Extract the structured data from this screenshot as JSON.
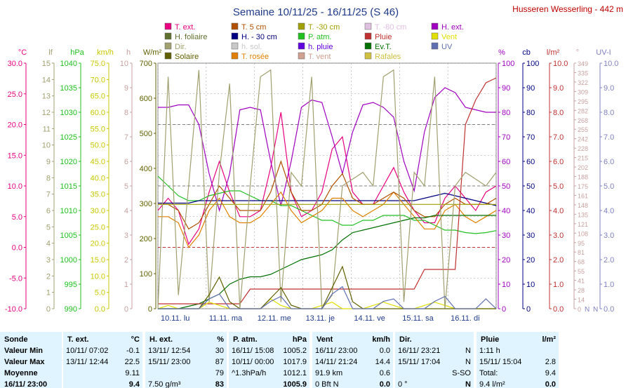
{
  "title": "Semaine 10/11/25 - 16/11/25 (S 46)",
  "station": "Husseren Wesserling - 442 m",
  "legend": [
    {
      "label": "T. ext.",
      "color": "#e8007f"
    },
    {
      "label": "T. 5 cm",
      "color": "#b05000"
    },
    {
      "label": "T. -30 cm",
      "color": "#a0a000"
    },
    {
      "label": "T. -80 cm",
      "color": "#e0c0e0"
    },
    {
      "label": "H. ext.",
      "color": "#a000c0"
    },
    {
      "label": "H. foliaire",
      "color": "#607030"
    },
    {
      "label": "H. - 30 cm",
      "color": "#000080"
    },
    {
      "label": "P. atm.",
      "color": "#20c020"
    },
    {
      "label": "Pluie",
      "color": "#c03030"
    },
    {
      "label": "Vent",
      "color": "#e0e000"
    },
    {
      "label": "Dir.",
      "color": "#a0a070"
    },
    {
      "label": "h. sol.",
      "color": "#c8c8c8"
    },
    {
      "label": "h. pluie",
      "color": "#6000e0"
    },
    {
      "label": "Ev.T.",
      "color": "#007000"
    },
    {
      "label": "UV",
      "color": "#6070b0"
    },
    {
      "label": "Solaire",
      "color": "#606000"
    },
    {
      "label": "T. rosée",
      "color": "#e08000"
    },
    {
      "label": "T. vent",
      "color": "#d0a090"
    },
    {
      "label": "Rafales",
      "color": "#d0c040"
    }
  ],
  "chart_data": {
    "type": "line",
    "title": "Semaine 10/11/25 - 16/11/25 (S 46)",
    "x_labels": [
      "10.11. lu",
      "11.11. ma",
      "12.11. me",
      "13.11. je",
      "14.11. ve",
      "15.11. sa",
      "16.11. di"
    ],
    "axes": {
      "temp": {
        "unit": "°C",
        "color": "#e8007f",
        "ticks": [
          "30.0",
          "25.0",
          "20.0",
          "15.0",
          "10.0",
          "5.0",
          "0.0",
          "-5.0",
          "-10.0"
        ],
        "range": [
          -10,
          30
        ]
      },
      "lf": {
        "unit": "lf",
        "color": "#a0a070",
        "ticks": [
          "15",
          "14",
          "13",
          "12",
          "11",
          "10",
          "9",
          "8",
          "7",
          "6",
          "5",
          "4",
          "3",
          "2",
          "1",
          "0"
        ],
        "range": [
          0,
          15
        ]
      },
      "pressure": {
        "unit": "hPa",
        "color": "#20c020",
        "ticks": [
          "1040",
          "1035",
          "1030",
          "1025",
          "1020",
          "1015",
          "1010",
          "1005",
          "1000",
          "995",
          "990"
        ],
        "range": [
          990,
          1040
        ]
      },
      "wind": {
        "unit": "km/h",
        "color": "#c8c800",
        "ticks": [
          "75.0",
          "70.0",
          "65.0",
          "60.0",
          "55.0",
          "50.0",
          "45.0",
          "40.0",
          "35.0",
          "30.0",
          "25.0",
          "20.0",
          "15.0",
          "10.0",
          "5.0",
          "0.0"
        ],
        "range": [
          0,
          75
        ]
      },
      "hours": {
        "unit": "h",
        "color": "#c8a0a0",
        "ticks": [
          "10",
          "9",
          "8",
          "7",
          "6",
          "5",
          "4",
          "3",
          "2",
          "1",
          "0"
        ],
        "range": [
          0,
          10
        ]
      },
      "solar": {
        "unit": "W/m²",
        "color": "#606000",
        "ticks": [
          "700",
          "600",
          "500",
          "400",
          "300",
          "200",
          "100",
          "0"
        ],
        "range": [
          0,
          700
        ]
      },
      "humidity": {
        "unit": "%",
        "color": "#a000c0",
        "ticks": [
          "100",
          "90",
          "80",
          "70",
          "60",
          "50",
          "40",
          "30",
          "20",
          "10",
          "0"
        ],
        "range": [
          0,
          100
        ]
      },
      "cb": {
        "unit": "cb",
        "color": "#000080",
        "ticks": [
          "100",
          "90",
          "80",
          "70",
          "60",
          "50",
          "40",
          "30",
          "20",
          "10",
          "0"
        ],
        "range": [
          0,
          100
        ]
      },
      "rain": {
        "unit": "l/m²",
        "color": "#c03030",
        "ticks": [
          "10.0",
          "9.0",
          "8.0",
          "7.0",
          "6.0",
          "5.0",
          "4.0",
          "3.0",
          "2.0",
          "1.0",
          "0.0"
        ],
        "range": [
          0,
          10
        ]
      },
      "dir": {
        "unit": "°",
        "color": "#c8a0a0",
        "ticks": [
          "349",
          "335",
          "322",
          "309",
          "295",
          "282",
          "268",
          "255",
          "242",
          "228",
          "215",
          "202",
          "188",
          "175",
          "161",
          "148",
          "135",
          "121",
          "108",
          "95",
          "81",
          "68",
          "55",
          "41",
          "28",
          "14",
          "0"
        ],
        "range": [
          0,
          360
        ]
      },
      "uv": {
        "unit": "UV-I",
        "color": "#8080c0",
        "ticks": [
          "10.0",
          "9.0",
          "8.0",
          "7.0",
          "6.0",
          "5.0",
          "4.0",
          "3.0",
          "2.0",
          "1.0",
          "0.0"
        ],
        "range": [
          0,
          10
        ]
      }
    },
    "dir_labels": [
      "N",
      "N"
    ],
    "series": [
      {
        "name": "T. ext.",
        "color": "#e8007f",
        "axis": "temp",
        "values": [
          6,
          8,
          6,
          0.5,
          3,
          9,
          14,
          9,
          5,
          5,
          6,
          13,
          22,
          9,
          5,
          6,
          9,
          16,
          18,
          9,
          7,
          7,
          10,
          13,
          9,
          6,
          4,
          4,
          8,
          10,
          8,
          6,
          9,
          10
        ]
      },
      {
        "name": "H. ext.",
        "color": "#a000c0",
        "axis": "humidity",
        "values": [
          82,
          82,
          83,
          83,
          75,
          55,
          40,
          55,
          81,
          82,
          81,
          60,
          42,
          60,
          82,
          85,
          84,
          70,
          55,
          72,
          83,
          84,
          82,
          78,
          60,
          48,
          72,
          86,
          90,
          88,
          82,
          81,
          80,
          80
        ]
      },
      {
        "name": "P. atm.",
        "color": "#20c020",
        "axis": "pressure",
        "values": [
          1017,
          1015,
          1013,
          1012,
          1012,
          1013,
          1013.5,
          1014,
          1014,
          1013,
          1012,
          1012,
          1011,
          1011,
          1010,
          1009,
          1008,
          1008,
          1007,
          1007,
          1008,
          1008,
          1009,
          1009,
          1009,
          1008,
          1008,
          1007,
          1006,
          1006,
          1005.5,
          1005.3,
          1005.5,
          1005.9
        ]
      },
      {
        "name": "H. - 30 cm",
        "color": "#000080",
        "axis": "cb",
        "values": [
          43,
          43,
          43,
          43,
          44,
          44,
          44,
          44,
          44,
          44,
          44,
          44,
          44,
          44,
          44,
          44,
          44,
          44,
          44,
          44,
          44,
          44,
          44,
          44,
          44,
          44,
          45,
          46,
          47,
          46,
          45,
          44,
          43,
          42
        ]
      },
      {
        "name": "T. rosée",
        "color": "#e08000",
        "axis": "temp",
        "values": [
          5,
          5,
          4,
          0,
          2,
          6,
          8,
          5,
          4,
          4,
          5,
          7,
          9,
          6,
          4,
          5,
          6,
          8,
          8,
          6,
          5,
          6,
          7,
          9,
          7,
          5,
          3,
          3,
          6,
          7,
          5,
          4,
          5,
          6
        ]
      },
      {
        "name": "T. 5 cm",
        "color": "#b05000",
        "axis": "temp",
        "values": [
          7,
          7,
          6,
          3,
          4,
          7,
          10,
          8,
          6,
          6,
          6,
          9,
          14,
          9,
          6,
          6,
          7,
          10,
          12,
          8,
          7,
          7,
          8,
          9,
          8,
          6,
          5,
          5,
          7,
          8,
          7,
          7,
          7,
          8
        ]
      },
      {
        "name": "T. -30 cm",
        "color": "#a0a000",
        "axis": "temp",
        "values": [
          7,
          7,
          7,
          7,
          7,
          7,
          7,
          7,
          7,
          7,
          7,
          7,
          7,
          7,
          7,
          7,
          7,
          7,
          7,
          7,
          7,
          7,
          7,
          7,
          7,
          7,
          7,
          7,
          7,
          7,
          7,
          7,
          7,
          7
        ]
      },
      {
        "name": "Ev.T.",
        "color": "#007000",
        "axis": "rain",
        "values": [
          0,
          0,
          0,
          0.1,
          0.2,
          0.4,
          0.6,
          1,
          1.2,
          1.3,
          1.3,
          1.4,
          1.6,
          1.8,
          2,
          2.1,
          2.2,
          2.4,
          2.8,
          3.1,
          3.2,
          3.3,
          3.4,
          3.5,
          3.6,
          3.7,
          3.7,
          3.8,
          3.8,
          3.8,
          3.8,
          3.8,
          3.8,
          3.8
        ]
      },
      {
        "name": "Pluie",
        "color": "#c03030",
        "axis": "rain",
        "values": [
          0.2,
          0.2,
          0.2,
          0.2,
          0.2,
          0.2,
          0.2,
          0.2,
          0.2,
          0.8,
          0.8,
          0.8,
          0.8,
          0.8,
          0.8,
          0.8,
          0.8,
          0.8,
          0.8,
          0.8,
          0.8,
          0.8,
          0.8,
          0.8,
          0.8,
          0.8,
          1.6,
          1.6,
          1.6,
          1.6,
          7.5,
          8.5,
          9.2,
          9.4
        ]
      },
      {
        "name": "Vent",
        "color": "#e0e000",
        "axis": "wind",
        "values": [
          0,
          1,
          0,
          0,
          0,
          2,
          1,
          0,
          0,
          0,
          0,
          3,
          1,
          0,
          0,
          0,
          1,
          2,
          0,
          0,
          0,
          1,
          2,
          1,
          0,
          0,
          1,
          2,
          1,
          0,
          0,
          0,
          0,
          0
        ]
      },
      {
        "name": "Dir.",
        "color": "#a0a070",
        "axis": "dir",
        "values": [
          0,
          340,
          20,
          180,
          350,
          10,
          200,
          330,
          0,
          180,
          340,
          350,
          10,
          200,
          180,
          340,
          0,
          20,
          180,
          190,
          200,
          180,
          340,
          350,
          10,
          200,
          180,
          340,
          0,
          180,
          200,
          190,
          180,
          200
        ]
      },
      {
        "name": "Solaire",
        "color": "#606000",
        "axis": "solar",
        "values": [
          0,
          0,
          0,
          0,
          0,
          40,
          90,
          20,
          0,
          0,
          0,
          30,
          60,
          10,
          0,
          0,
          0,
          60,
          120,
          20,
          0,
          0,
          0,
          0,
          0,
          0,
          0,
          0,
          0,
          0,
          0,
          0,
          0,
          0
        ]
      },
      {
        "name": "UV",
        "color": "#6070b0",
        "axis": "uv",
        "values": [
          0,
          0,
          0,
          0,
          0,
          0.4,
          0.6,
          0,
          0,
          0,
          0,
          0.3,
          0.5,
          0,
          0,
          0,
          0,
          0.6,
          0.9,
          0,
          0,
          0,
          0.3,
          0.4,
          0,
          0,
          0,
          0.3,
          0.5,
          0,
          0,
          0,
          0.4,
          0
        ]
      }
    ],
    "grid": true,
    "dashed_levels": [
      {
        "axis": "temp",
        "value": 0,
        "color": "#c03030"
      },
      {
        "axis": "temp",
        "value": 10,
        "color": "#808080"
      },
      {
        "axis": "temp",
        "value": 20,
        "color": "#808080"
      }
    ]
  },
  "table": {
    "sonde": {
      "header": "Sonde",
      "rows": [
        "Valeur Min",
        "Valeur Max",
        "Moyenne",
        "16/11/ 23:00"
      ]
    },
    "text": {
      "header": "T. ext.",
      "unit": "°C",
      "rows": [
        [
          "10/11/ 07:02",
          "-0.1"
        ],
        [
          "13/11/ 12:44",
          "22.5"
        ],
        [
          "",
          "9.11"
        ],
        [
          "",
          "9.4"
        ]
      ]
    },
    "hext": {
      "header": "H. ext.",
      "unit": "%",
      "rows": [
        [
          "13/11/ 12:54",
          "30"
        ],
        [
          "15/11/ 23:00",
          "87"
        ],
        [
          "",
          "79"
        ],
        [
          "7.50 g/m³",
          "83"
        ]
      ]
    },
    "patm": {
      "header": "P. atm.",
      "unit": "hPa",
      "rows": [
        [
          "16/11/ 15:08",
          "1005.2"
        ],
        [
          "10/11/ 00:00",
          "1017.9"
        ],
        [
          "^1.3hPa/h",
          "1012.1"
        ],
        [
          "",
          "1005.9"
        ]
      ]
    },
    "vent": {
      "header": "Vent",
      "unit": "km/h",
      "rows": [
        [
          "16/11/ 23:00",
          "0.0"
        ],
        [
          "14/11/ 21:24",
          "14.4"
        ],
        [
          "91.9 km",
          "0.6"
        ],
        [
          "0 Bft N",
          "0.0"
        ]
      ]
    },
    "dir": {
      "header": "Dir.",
      "unit": "",
      "rows": [
        [
          "16/11/ 23:21",
          "N"
        ],
        [
          "15/11/ 17:04",
          "N"
        ],
        [
          "",
          "S-SO"
        ],
        [
          "0 °",
          "N"
        ]
      ]
    },
    "pluie": {
      "header": "Pluie",
      "unit": "l/m²",
      "rows": [
        [
          "1:11 h",
          ""
        ],
        [
          "15/11/ 15:04",
          "2.8"
        ],
        [
          "Total:",
          "9.4"
        ],
        [
          "9.4 l/m²",
          "0.0"
        ]
      ]
    }
  }
}
